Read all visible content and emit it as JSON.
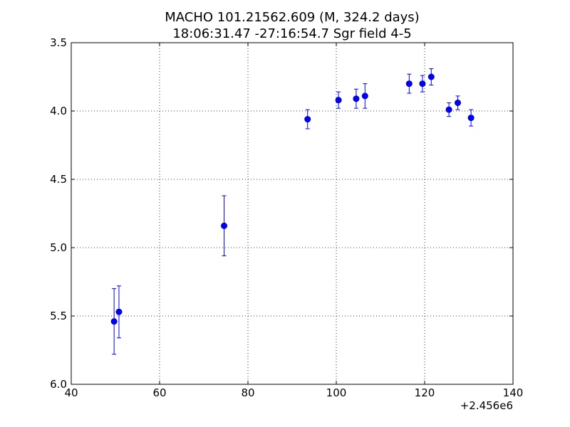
{
  "chart_data": {
    "type": "scatter",
    "title": "MACHO 101.21562.609 (M, 324.2 days)",
    "subtitle": "18:06:31.47 -27:16:54.7 Sgr field 4-5",
    "xlabel": "",
    "ylabel": "",
    "x_offset_label": "+2.456e6",
    "xlim": [
      40,
      140
    ],
    "ylim": [
      6.0,
      3.5
    ],
    "y_inverted": true,
    "grid": true,
    "grid_style": "dotted",
    "marker_color": "#0000ff",
    "x_ticks": [
      40,
      60,
      80,
      100,
      120,
      140
    ],
    "x_tick_labels": [
      "40",
      "60",
      "80",
      "100",
      "120",
      "140"
    ],
    "y_ticks": [
      3.5,
      4.0,
      4.5,
      5.0,
      5.5,
      6.0
    ],
    "y_tick_labels": [
      "3.5",
      "4.0",
      "4.5",
      "5.0",
      "5.5",
      "6.0"
    ],
    "points": [
      {
        "x": 49.7,
        "y": 5.54,
        "yerr": 0.24
      },
      {
        "x": 50.8,
        "y": 5.47,
        "yerr": 0.19
      },
      {
        "x": 74.6,
        "y": 4.84,
        "yerr": 0.22
      },
      {
        "x": 93.5,
        "y": 4.06,
        "yerr": 0.07
      },
      {
        "x": 100.5,
        "y": 3.92,
        "yerr": 0.06
      },
      {
        "x": 104.5,
        "y": 3.91,
        "yerr": 0.07
      },
      {
        "x": 106.5,
        "y": 3.89,
        "yerr": 0.09
      },
      {
        "x": 116.5,
        "y": 3.8,
        "yerr": 0.07
      },
      {
        "x": 119.5,
        "y": 3.8,
        "yerr": 0.06
      },
      {
        "x": 121.5,
        "y": 3.75,
        "yerr": 0.06
      },
      {
        "x": 125.5,
        "y": 3.99,
        "yerr": 0.05
      },
      {
        "x": 127.5,
        "y": 3.94,
        "yerr": 0.05
      },
      {
        "x": 130.5,
        "y": 4.05,
        "yerr": 0.06
      }
    ]
  }
}
